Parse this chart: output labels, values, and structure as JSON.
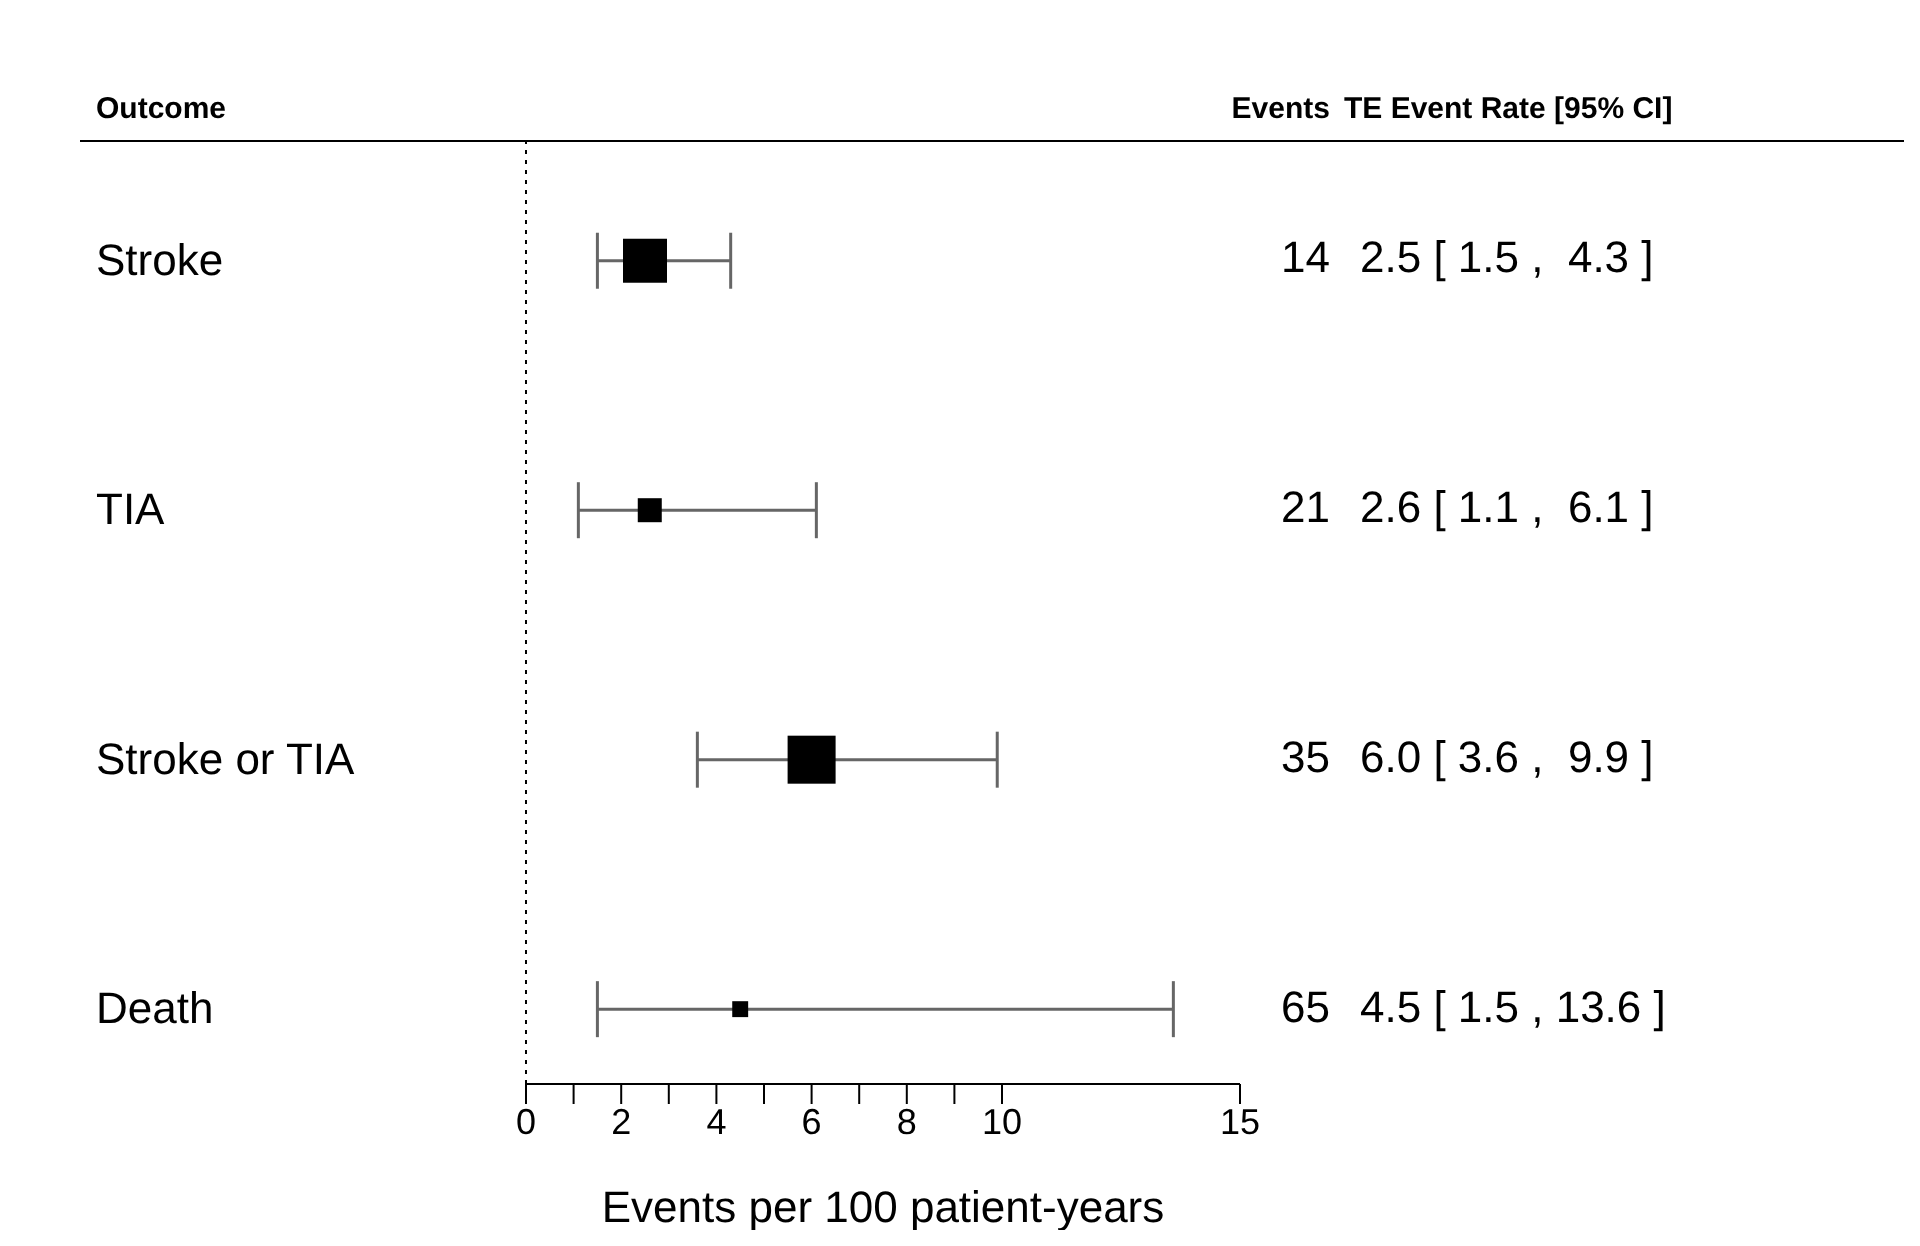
{
  "chart_data": {
    "type": "bubble",
    "orientation": "horizontal",
    "marker": "square",
    "xlabel": "Events per 100 patient-years",
    "categories": [
      "Stroke",
      "TIA",
      "Stroke or TIA",
      "Death"
    ],
    "series": [
      {
        "color": "#000000",
        "values": [
          2.5,
          2.6,
          6.0,
          4.5
        ],
        "sizes": [
          0.84,
          0.25,
          1,
          0.11
        ],
        "errors": [
          [
            1.5,
            4.3
          ],
          [
            1.1,
            6.1
          ],
          [
            3.6,
            9.9
          ],
          [
            1.5,
            13.6
          ]
        ]
      }
    ],
    "annotations": [
      "Outcome",
      "Events",
      "TE Event Rate [95% CI]",
      "14",
      "2.5 [ 1.5 ,  4.3 ]",
      "21",
      "2.6 [ 1.1 ,  6.1 ]",
      "35",
      "6.0 [ 3.6 ,  9.9 ]",
      "65",
      "4.5 [ 1.5 , 13.6 ]"
    ],
    "ref_lines": [
      {
        "axis": "x",
        "value": 0,
        "line_style": "dotted",
        "color": "#000000"
      }
    ],
    "xlim": [
      0,
      15
    ],
    "xticks": [
      0,
      {
        "value": 1,
        "label": null
      },
      2,
      {
        "value": 3,
        "label": null
      },
      4,
      {
        "value": 5,
        "label": null
      },
      6,
      {
        "value": 7,
        "label": null
      },
      8,
      {
        "value": 9,
        "label": null
      },
      10,
      15
    ]
  }
}
